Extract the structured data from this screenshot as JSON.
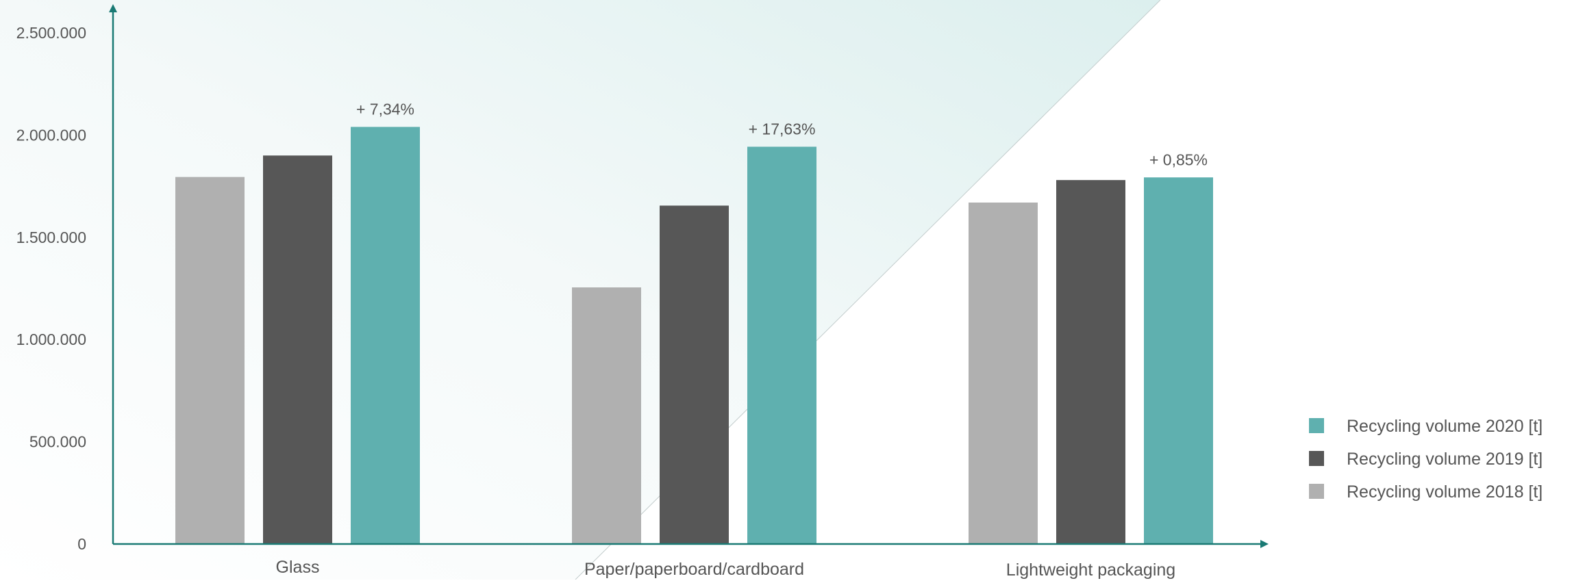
{
  "colors": {
    "axis": "#1a7a74",
    "series_2018": "#b0b0b0",
    "series_2019": "#575757",
    "series_2020": "#5fb0af",
    "text": "#555555",
    "bg_gradient_light": "#ffffff",
    "bg_gradient_teal": "#dcefee"
  },
  "chart_data": {
    "type": "bar",
    "categories": [
      "Glass",
      "Paper/paperboard/cardboard",
      "Lightweight packaging"
    ],
    "series": [
      {
        "name": "Recycling volume 2018 [t]",
        "values": [
          1795000,
          1255000,
          1670000
        ],
        "color": "#b0b0b0"
      },
      {
        "name": "Recycling volume 2019 [t]",
        "values": [
          1900000,
          1655000,
          1780000
        ],
        "color": "#575757"
      },
      {
        "name": "Recycling volume 2020 [t]",
        "values": [
          2040000,
          1943000,
          1793000
        ],
        "color": "#5fb0af"
      }
    ],
    "annotations": [
      "+ 7,34%",
      "+ 17,63%",
      "+ 0,85%"
    ],
    "ylim": [
      0,
      2500000
    ],
    "yticks": [
      0,
      500000,
      1000000,
      1500000,
      2000000,
      2500000
    ],
    "ytick_labels": [
      "0",
      "500.000",
      "1.000.000",
      "1.500.000",
      "2.000.000",
      "2.500.000"
    ],
    "title": "",
    "xlabel": "",
    "ylabel": "",
    "grid": false,
    "legend": {
      "position": "bottom-right",
      "entries": [
        "Recycling volume 2020 [t]",
        "Recycling volume 2019 [t]",
        "Recycling volume 2018 [t]"
      ]
    }
  }
}
